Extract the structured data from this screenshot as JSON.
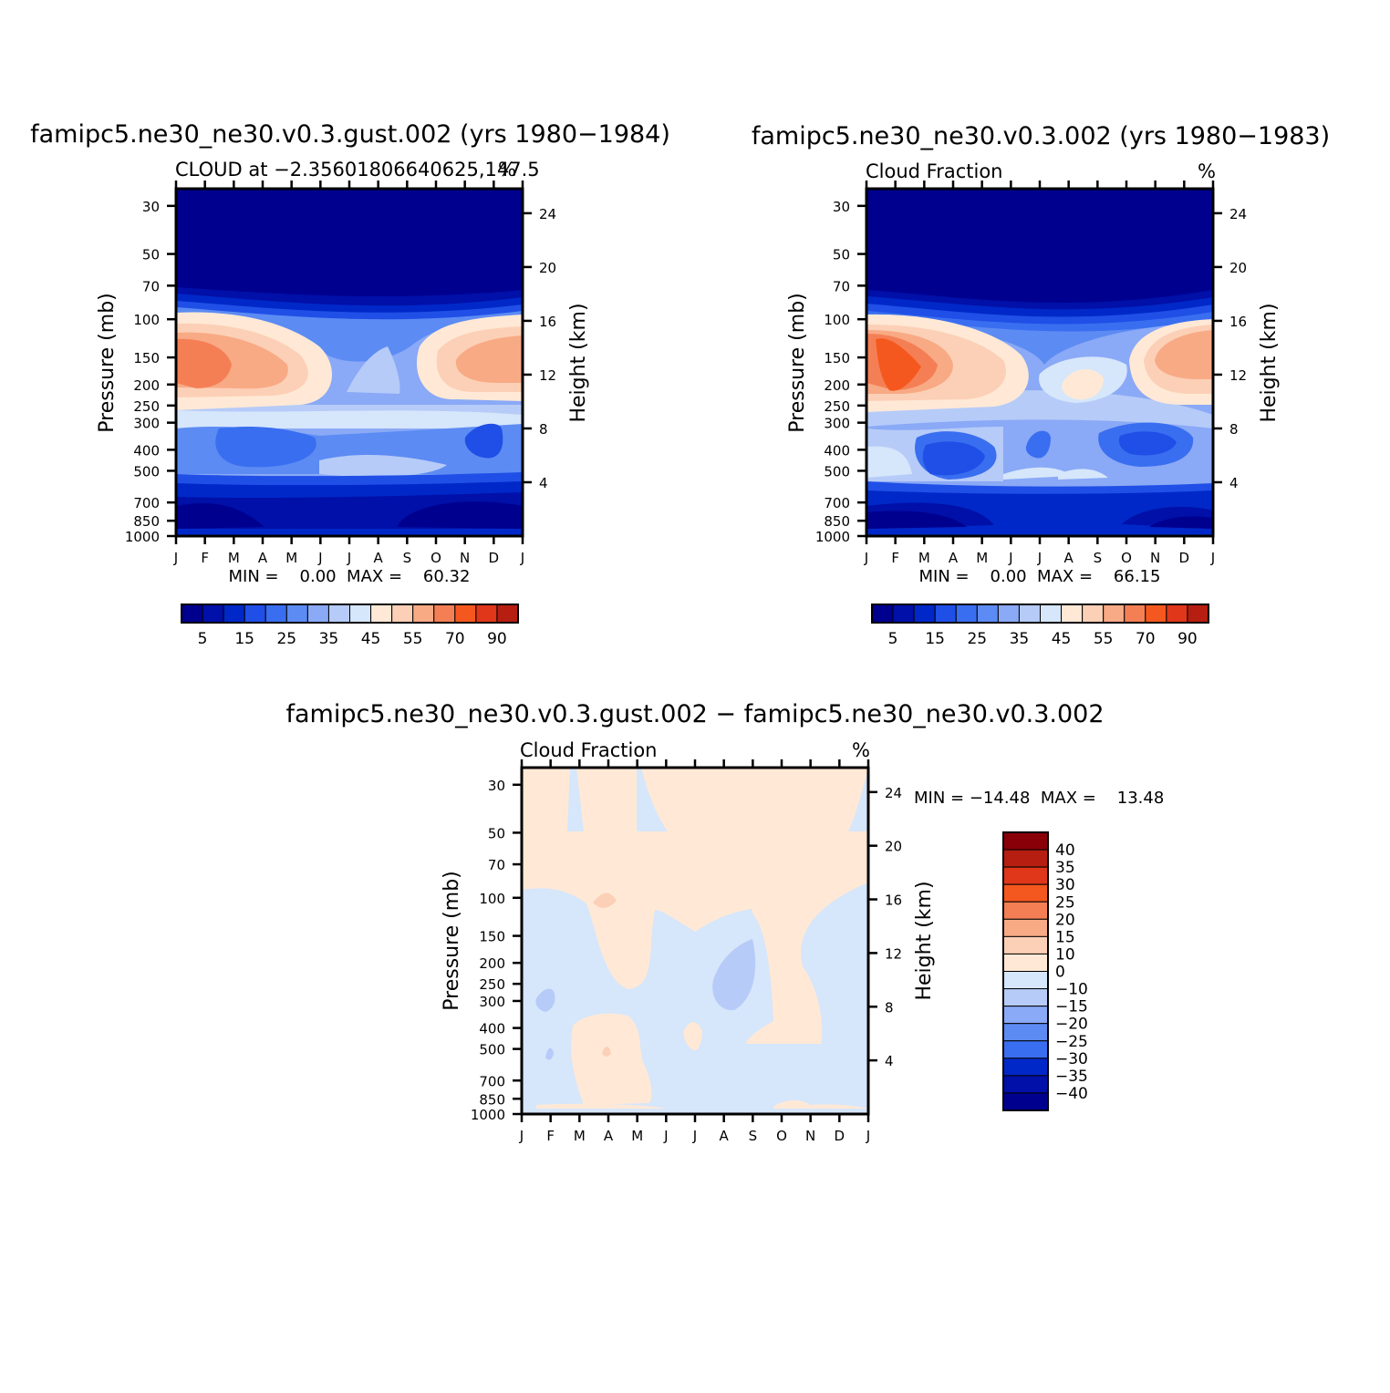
{
  "palette": {
    "blue": [
      "#00008f",
      "#0010a8",
      "#0028c8",
      "#1f4fe6",
      "#3a6ef0",
      "#5c8bf3",
      "#8aa9f6",
      "#b6cbf8",
      "#d6e6fb"
    ],
    "red": [
      "#ffe9d6",
      "#fcd0b6",
      "#f8aa85",
      "#f57f55",
      "#f5581e",
      "#e0361a",
      "#b51e10",
      "#8a0008"
    ]
  },
  "chart_data": [
    {
      "id": "panel-gust",
      "type": "heatmap",
      "title": "famipc5.ne30_ne30.v0.3.gust.002 (yrs 1980−1984)",
      "subtitle_left": "CLOUD at −2.35601806640625,147.5",
      "subtitle_right": "%",
      "ylabel": "Pressure (mb)",
      "ylabel_right": "Height (km)",
      "x_ticks": [
        "J",
        "F",
        "M",
        "A",
        "M",
        "J",
        "J",
        "A",
        "S",
        "O",
        "N",
        "D",
        "J"
      ],
      "y_ticks": [
        "30",
        "50",
        "70",
        "100",
        "150",
        "200",
        "250",
        "300",
        "400",
        "500",
        "700",
        "850",
        "1000"
      ],
      "y_ticks_right": [
        "24",
        "20",
        "16",
        "12",
        "8",
        "4"
      ],
      "stats": "MIN =    0.00  MAX =    60.32",
      "min": 0.0,
      "max": 60.32,
      "colorbar": {
        "levels": [
          5,
          10,
          15,
          20,
          25,
          30,
          35,
          40,
          45,
          50,
          55,
          60,
          70,
          80,
          90
        ],
        "labels": [
          "5",
          "15",
          "25",
          "35",
          "45",
          "55",
          "70",
          "90"
        ]
      }
    },
    {
      "id": "panel-base",
      "type": "heatmap",
      "title": "famipc5.ne30_ne30.v0.3.002 (yrs 1980−1983)",
      "subtitle_left": "Cloud Fraction",
      "subtitle_right": "%",
      "ylabel": "Pressure (mb)",
      "ylabel_right": "Height (km)",
      "x_ticks": [
        "J",
        "F",
        "M",
        "A",
        "M",
        "J",
        "J",
        "A",
        "S",
        "O",
        "N",
        "D",
        "J"
      ],
      "y_ticks": [
        "30",
        "50",
        "70",
        "100",
        "150",
        "200",
        "250",
        "300",
        "400",
        "500",
        "700",
        "850",
        "1000"
      ],
      "y_ticks_right": [
        "24",
        "20",
        "16",
        "12",
        "8",
        "4"
      ],
      "stats": "MIN =    0.00  MAX =    66.15",
      "min": 0.0,
      "max": 66.15,
      "colorbar": {
        "levels": [
          5,
          10,
          15,
          20,
          25,
          30,
          35,
          40,
          45,
          50,
          55,
          60,
          70,
          80,
          90
        ],
        "labels": [
          "5",
          "15",
          "25",
          "35",
          "45",
          "55",
          "70",
          "90"
        ]
      }
    },
    {
      "id": "panel-diff",
      "type": "heatmap",
      "title": "famipc5.ne30_ne30.v0.3.gust.002 − famipc5.ne30_ne30.v0.3.002",
      "subtitle_left": "Cloud Fraction",
      "subtitle_right": "%",
      "ylabel": "Pressure (mb)",
      "ylabel_right": "Height (km)",
      "x_ticks": [
        "J",
        "F",
        "M",
        "A",
        "M",
        "J",
        "J",
        "A",
        "S",
        "O",
        "N",
        "D",
        "J"
      ],
      "y_ticks": [
        "30",
        "50",
        "70",
        "100",
        "150",
        "200",
        "250",
        "300",
        "400",
        "500",
        "700",
        "850",
        "1000"
      ],
      "y_ticks_right": [
        "24",
        "20",
        "16",
        "12",
        "8",
        "4"
      ],
      "stats": "MIN = −14.48  MAX =    13.48",
      "min": -14.48,
      "max": 13.48,
      "colorbar": {
        "levels": [
          -40,
          -35,
          -30,
          -25,
          -20,
          -15,
          -10,
          0,
          10,
          15,
          20,
          25,
          30,
          35,
          40
        ],
        "labels": [
          "40",
          "35",
          "30",
          "25",
          "20",
          "15",
          "10",
          "0",
          "−10",
          "−15",
          "−20",
          "−25",
          "−30",
          "−35",
          "−40"
        ]
      }
    }
  ]
}
